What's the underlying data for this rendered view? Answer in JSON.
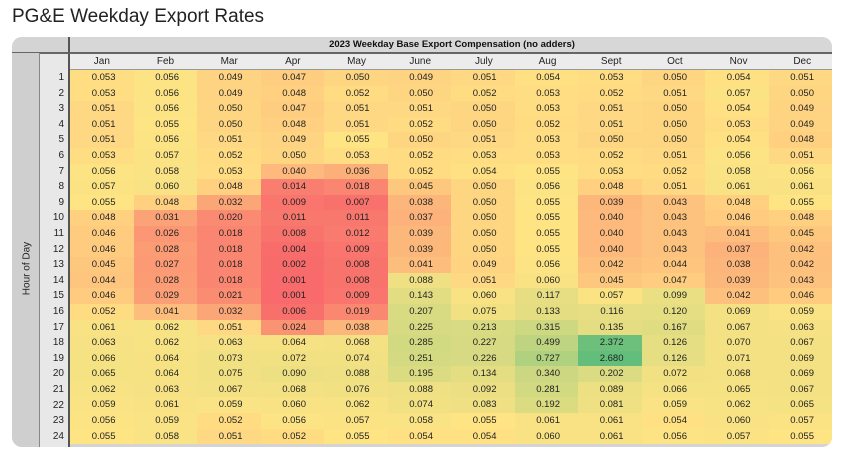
{
  "title": "PG&E Weekday Export Rates",
  "chart_data": {
    "type": "heatmap",
    "title": "2023 Weekday Base Export Compensation (no adders)",
    "ylabel": "Hour of Day",
    "columns": [
      "Jan",
      "Feb",
      "Mar",
      "Apr",
      "May",
      "June",
      "July",
      "Aug",
      "Sept",
      "Oct",
      "Nov",
      "Dec"
    ],
    "rows": [
      "1",
      "2",
      "3",
      "4",
      "5",
      "6",
      "7",
      "8",
      "9",
      "10",
      "11",
      "12",
      "13",
      "14",
      "15",
      "16",
      "17",
      "18",
      "19",
      "20",
      "21",
      "22",
      "23",
      "24"
    ],
    "values": [
      [
        "0.053",
        "0.056",
        "0.049",
        "0.047",
        "0.050",
        "0.049",
        "0.051",
        "0.054",
        "0.053",
        "0.050",
        "0.054",
        "0.051"
      ],
      [
        "0.053",
        "0.056",
        "0.049",
        "0.048",
        "0.052",
        "0.050",
        "0.052",
        "0.053",
        "0.052",
        "0.051",
        "0.057",
        "0.050"
      ],
      [
        "0.051",
        "0.056",
        "0.050",
        "0.047",
        "0.051",
        "0.051",
        "0.050",
        "0.053",
        "0.051",
        "0.050",
        "0.054",
        "0.049"
      ],
      [
        "0.051",
        "0.055",
        "0.050",
        "0.048",
        "0.051",
        "0.052",
        "0.050",
        "0.052",
        "0.051",
        "0.050",
        "0.053",
        "0.049"
      ],
      [
        "0.051",
        "0.056",
        "0.051",
        "0.049",
        "0.055",
        "0.050",
        "0.051",
        "0.053",
        "0.050",
        "0.050",
        "0.054",
        "0.048"
      ],
      [
        "0.053",
        "0.057",
        "0.052",
        "0.050",
        "0.053",
        "0.052",
        "0.053",
        "0.053",
        "0.052",
        "0.051",
        "0.056",
        "0.051"
      ],
      [
        "0.056",
        "0.058",
        "0.053",
        "0.040",
        "0.036",
        "0.052",
        "0.054",
        "0.055",
        "0.053",
        "0.052",
        "0.058",
        "0.056"
      ],
      [
        "0.057",
        "0.060",
        "0.048",
        "0.014",
        "0.018",
        "0.045",
        "0.050",
        "0.056",
        "0.048",
        "0.051",
        "0.061",
        "0.061"
      ],
      [
        "0.055",
        "0.048",
        "0.032",
        "0.009",
        "0.007",
        "0.038",
        "0.050",
        "0.055",
        "0.039",
        "0.043",
        "0.048",
        "0.055"
      ],
      [
        "0.048",
        "0.031",
        "0.020",
        "0.011",
        "0.011",
        "0.037",
        "0.050",
        "0.055",
        "0.040",
        "0.043",
        "0.046",
        "0.048"
      ],
      [
        "0.046",
        "0.026",
        "0.018",
        "0.008",
        "0.012",
        "0.039",
        "0.050",
        "0.055",
        "0.040",
        "0.043",
        "0.041",
        "0.045"
      ],
      [
        "0.046",
        "0.028",
        "0.018",
        "0.004",
        "0.009",
        "0.039",
        "0.050",
        "0.055",
        "0.040",
        "0.043",
        "0.037",
        "0.042"
      ],
      [
        "0.045",
        "0.027",
        "0.018",
        "0.002",
        "0.008",
        "0.041",
        "0.049",
        "0.056",
        "0.042",
        "0.044",
        "0.038",
        "0.042"
      ],
      [
        "0.044",
        "0.028",
        "0.018",
        "0.001",
        "0.008",
        "0.088",
        "0.051",
        "0.060",
        "0.045",
        "0.047",
        "0.039",
        "0.043"
      ],
      [
        "0.046",
        "0.029",
        "0.021",
        "0.001",
        "0.009",
        "0.143",
        "0.060",
        "0.117",
        "0.057",
        "0.099",
        "0.042",
        "0.046"
      ],
      [
        "0.052",
        "0.041",
        "0.032",
        "0.006",
        "0.019",
        "0.207",
        "0.075",
        "0.133",
        "0.116",
        "0.120",
        "0.069",
        "0.059"
      ],
      [
        "0.061",
        "0.062",
        "0.051",
        "0.024",
        "0.038",
        "0.225",
        "0.213",
        "0.315",
        "0.135",
        "0.167",
        "0.067",
        "0.063"
      ],
      [
        "0.063",
        "0.062",
        "0.063",
        "0.064",
        "0.068",
        "0.285",
        "0.227",
        "0.499",
        "2.372",
        "0.126",
        "0.070",
        "0.067"
      ],
      [
        "0.066",
        "0.064",
        "0.073",
        "0.072",
        "0.074",
        "0.251",
        "0.226",
        "0.727",
        "2.680",
        "0.126",
        "0.071",
        "0.069"
      ],
      [
        "0.065",
        "0.064",
        "0.075",
        "0.090",
        "0.088",
        "0.195",
        "0.134",
        "0.340",
        "0.202",
        "0.072",
        "0.068",
        "0.069"
      ],
      [
        "0.062",
        "0.063",
        "0.067",
        "0.068",
        "0.076",
        "0.088",
        "0.092",
        "0.281",
        "0.089",
        "0.066",
        "0.065",
        "0.067"
      ],
      [
        "0.059",
        "0.061",
        "0.059",
        "0.060",
        "0.062",
        "0.074",
        "0.083",
        "0.192",
        "0.081",
        "0.059",
        "0.062",
        "0.065"
      ],
      [
        "0.056",
        "0.059",
        "0.052",
        "0.056",
        "0.057",
        "0.058",
        "0.055",
        "0.061",
        "0.061",
        "0.054",
        "0.060",
        "0.057"
      ],
      [
        "0.055",
        "0.058",
        "0.051",
        "0.052",
        "0.055",
        "0.054",
        "0.054",
        "0.060",
        "0.061",
        "0.056",
        "0.057",
        "0.055"
      ]
    ],
    "color_scale": {
      "low": "#f8696b",
      "mid": "#ffe484",
      "high": "#63be7b"
    }
  }
}
